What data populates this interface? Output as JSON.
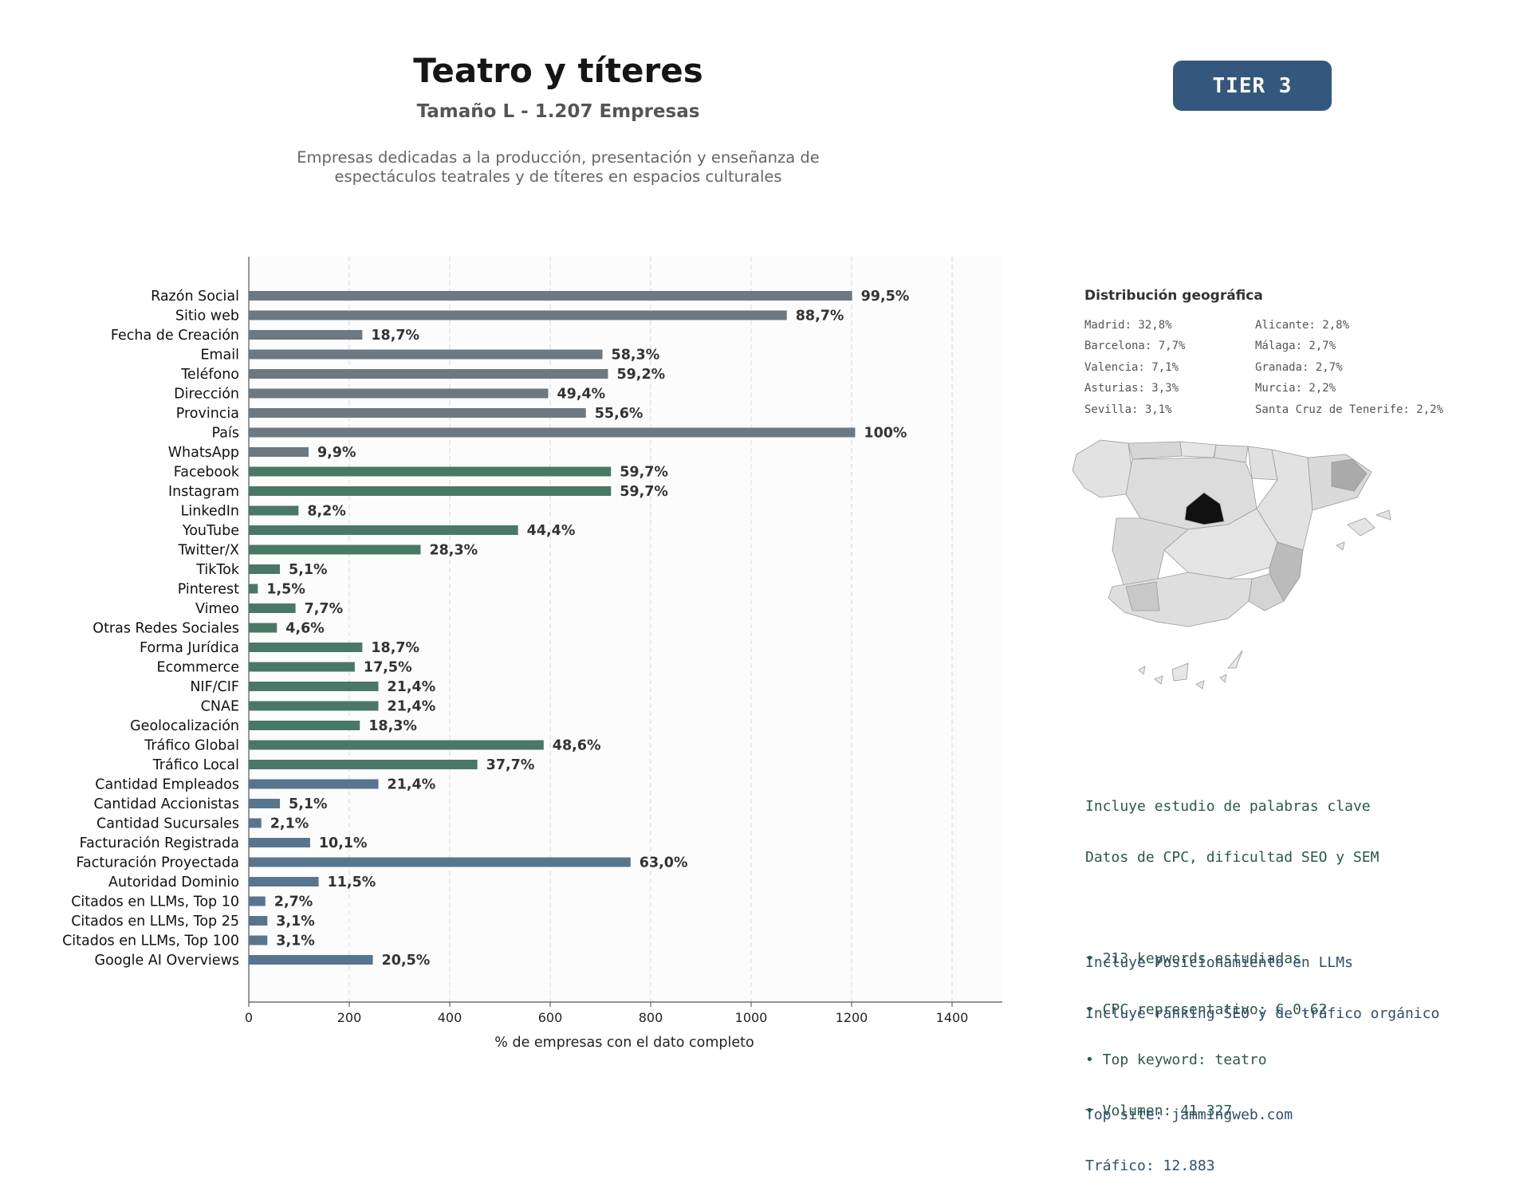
{
  "header": {
    "title": "Teatro y títeres",
    "subtitle": "Tamaño L - 1.207 Empresas",
    "description_lines": [
      "Empresas dedicadas a la producción, presentación y enseñanza de",
      "espectáculos teatrales y de títeres en espacios culturales"
    ],
    "tier": "TIER 3"
  },
  "colors": {
    "group1": "#6e7880",
    "group2": "#4a7866",
    "group3": "#587590",
    "map_highlight": "#111111",
    "map_mid": "#aaaaaa",
    "map_light": "#dddddd"
  },
  "chart_data": {
    "type": "bar",
    "orientation": "horizontal",
    "xlabel": "% de empresas con el dato completo",
    "xlim": [
      0,
      1500
    ],
    "xticks": [
      0,
      200,
      400,
      600,
      800,
      1000,
      1200,
      1400
    ],
    "grid": "vertical dashed",
    "categories": [
      "Razón Social",
      "Sitio web",
      "Fecha de Creación",
      "Email",
      "Teléfono",
      "Dirección",
      "Provincia",
      "País",
      "WhatsApp",
      "Facebook",
      "Instagram",
      "LinkedIn",
      "YouTube",
      "Twitter/X",
      "TikTok",
      "Pinterest",
      "Vimeo",
      "Otras Redes Sociales",
      "Forma Jurídica",
      "Ecommerce",
      "NIF/CIF",
      "CNAE",
      "Geolocalización",
      "Tráfico Global",
      "Tráfico Local",
      "Cantidad Empleados",
      "Cantidad Accionistas",
      "Cantidad Sucursales",
      "Facturación Registrada",
      "Facturación Proyectada",
      "Autoridad Dominio",
      "Citados en LLMs, Top 10",
      "Citados en LLMs, Top 25",
      "Citados en LLMs, Top 100",
      "Google AI Overviews"
    ],
    "values": [
      1201,
      1071,
      226,
      704,
      715,
      596,
      671,
      1207,
      119,
      721,
      721,
      99,
      536,
      342,
      62,
      18,
      93,
      56,
      226,
      211,
      258,
      258,
      221,
      587,
      455,
      258,
      62,
      25,
      122,
      760,
      139,
      33,
      37,
      37,
      247
    ],
    "labels": [
      "99,5%",
      "88,7%",
      "18,7%",
      "58,3%",
      "59,2%",
      "49,4%",
      "55,6%",
      "100%",
      "9,9%",
      "59,7%",
      "59,7%",
      "8,2%",
      "44,4%",
      "28,3%",
      "5,1%",
      "1,5%",
      "7,7%",
      "4,6%",
      "18,7%",
      "17,5%",
      "21,4%",
      "21,4%",
      "18,3%",
      "48,6%",
      "37,7%",
      "21,4%",
      "5,1%",
      "2,1%",
      "10,1%",
      "63,0%",
      "11,5%",
      "2,7%",
      "3,1%",
      "3,1%",
      "20,5%"
    ],
    "groups": [
      1,
      1,
      1,
      1,
      1,
      1,
      1,
      1,
      1,
      2,
      2,
      2,
      2,
      2,
      2,
      2,
      2,
      2,
      2,
      2,
      2,
      2,
      2,
      2,
      2,
      3,
      3,
      3,
      3,
      3,
      3,
      3,
      3,
      3,
      3
    ]
  },
  "geo": {
    "title": "Distribución geográfica",
    "items": [
      "Madrid: 32,8%",
      "Alicante: 2,8%",
      "Barcelona: 7,7%",
      "Málaga: 2,7%",
      "Valencia: 7,1%",
      "Granada: 2,7%",
      "Asturias: 3,3%",
      "Murcia: 2,2%",
      "Sevilla: 3,1%",
      "Santa Cruz de Tenerife: 2,2%"
    ]
  },
  "keywords": {
    "lines": [
      "Incluye estudio de palabras clave",
      "Datos de CPC, dificultad SEO y SEM",
      "",
      "• 213 keywords estudiadas",
      "• CPC representativo: € 0.62",
      "• Top keyword: teatro",
      "• Volumen: 41.327"
    ]
  },
  "llm": {
    "lines": [
      "Incluye Posicionamiento en LLMs",
      "Incluye ranking SEO y de tráfico orgánico",
      "",
      "Top site: jammingweb.com",
      "Tráfico: 12.883"
    ]
  }
}
